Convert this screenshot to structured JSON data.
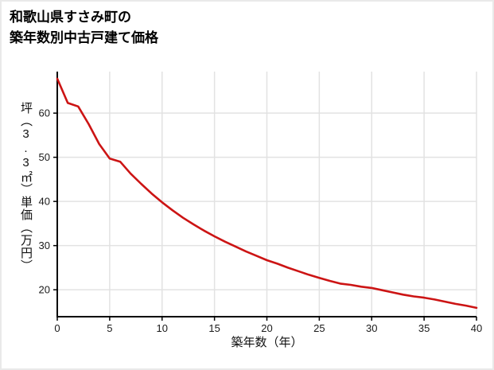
{
  "title": {
    "line1": "和歌山県すさみ町の",
    "line2": "築年数別中古戸建て価格"
  },
  "chart_data": {
    "type": "line",
    "title": "和歌山県すさみ町の築年数別中古戸建て価格",
    "xlabel": "築年数（年）",
    "ylabel": "坪（3.3㎡）単価（万円）",
    "x": [
      0,
      1,
      2,
      3,
      4,
      5,
      6,
      7,
      8,
      9,
      10,
      11,
      12,
      13,
      14,
      15,
      16,
      17,
      18,
      19,
      20,
      21,
      22,
      23,
      24,
      25,
      26,
      27,
      28,
      29,
      30,
      31,
      32,
      33,
      34,
      35,
      36,
      37,
      38,
      39,
      40
    ],
    "values": [
      67.8,
      62.3,
      61.5,
      57.5,
      53.0,
      49.7,
      49.0,
      46.3,
      44.0,
      41.8,
      39.8,
      38.0,
      36.3,
      34.8,
      33.4,
      32.1,
      30.9,
      29.8,
      28.7,
      27.7,
      26.7,
      25.9,
      25.0,
      24.2,
      23.4,
      22.7,
      22.0,
      21.4,
      21.1,
      20.7,
      20.4,
      19.9,
      19.4,
      18.9,
      18.5,
      18.2,
      17.8,
      17.3,
      16.8,
      16.4,
      15.9
    ],
    "xticks": [
      0,
      5,
      10,
      15,
      20,
      25,
      30,
      35,
      40
    ],
    "yticks": [
      20,
      30,
      40,
      50,
      60
    ],
    "xlim": [
      0,
      40
    ],
    "ylim": [
      13.9,
      69.4
    ],
    "grid": true,
    "legend": "none",
    "colors": {
      "line": "#cc1414",
      "grid": "#e2e2e2",
      "axis": "#000000",
      "text": "#1a1a1a"
    }
  }
}
